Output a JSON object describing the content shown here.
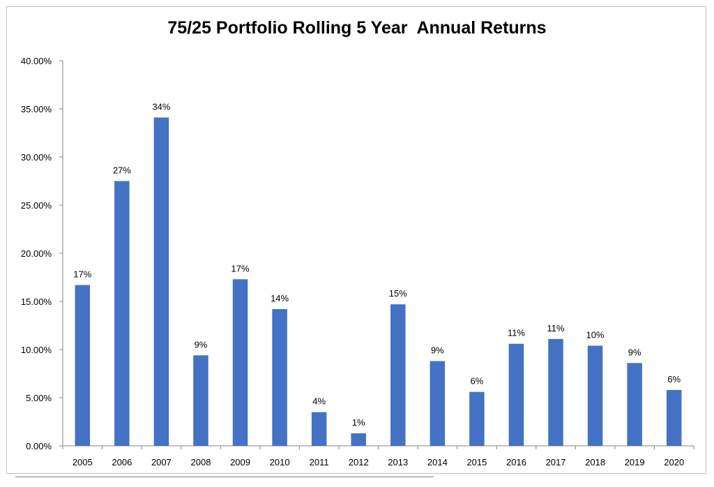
{
  "chart_data": {
    "type": "bar",
    "title": "75/25 Portfolio Rolling 5 Year  Annual Returns",
    "xlabel": "",
    "ylabel": "",
    "categories": [
      "2005",
      "2006",
      "2007",
      "2008",
      "2009",
      "2010",
      "2011",
      "2012",
      "2013",
      "2014",
      "2015",
      "2016",
      "2017",
      "2018",
      "2019",
      "2020"
    ],
    "values": [
      16.7,
      27.5,
      34.1,
      9.4,
      17.3,
      14.2,
      3.5,
      1.3,
      14.7,
      8.8,
      5.6,
      10.6,
      11.1,
      10.4,
      8.6,
      5.8
    ],
    "data_labels": [
      "17%",
      "27%",
      "34%",
      "9%",
      "17%",
      "14%",
      "4%",
      "1%",
      "15%",
      "9%",
      "6%",
      "11%",
      "11%",
      "10%",
      "9%",
      "6%"
    ],
    "ylim": [
      0,
      40
    ],
    "yticks": [
      0,
      5,
      10,
      15,
      20,
      25,
      30,
      35,
      40
    ],
    "ytick_labels": [
      "0.00%",
      "5.00%",
      "10.00%",
      "15.00%",
      "20.00%",
      "25.00%",
      "30.00%",
      "35.00%",
      "40.00%"
    ],
    "grid": false,
    "legend": "none",
    "bar_color": "#4472c4"
  }
}
